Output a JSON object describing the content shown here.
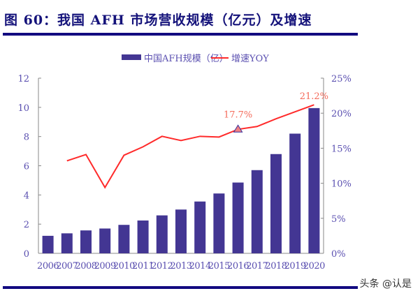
{
  "title": "图 60：我国 AFH 市场营收规模（亿元）及增速",
  "watermark": "头条 @认是",
  "chart_data": {
    "type": "bar+line",
    "categories": [
      "2006",
      "2007",
      "2008",
      "2009",
      "2010",
      "2011",
      "2012",
      "2013",
      "2014",
      "2015",
      "2016",
      "2017",
      "2018",
      "2019",
      "2020"
    ],
    "series": [
      {
        "name": "中国AFH规模（亿）",
        "type": "bar",
        "axis": "left",
        "color": "#433693",
        "values": [
          1.2,
          1.37,
          1.57,
          1.7,
          1.95,
          2.25,
          2.6,
          3.0,
          3.55,
          4.1,
          4.85,
          5.7,
          6.8,
          8.2,
          9.95
        ]
      },
      {
        "name": "增速YOY",
        "type": "line",
        "axis": "right",
        "color": "#ff2a2a",
        "values": [
          null,
          13.2,
          14.1,
          9.4,
          14.0,
          15.2,
          16.7,
          16.1,
          16.7,
          16.6,
          17.7,
          18.1,
          19.2,
          20.2,
          21.2
        ]
      }
    ],
    "annotations": [
      {
        "category": "2016",
        "label": "17.7%",
        "marker": "triangle"
      },
      {
        "category": "2020",
        "label": "21.2%"
      }
    ],
    "left_axis": {
      "ylim": [
        0,
        12
      ],
      "ticks": [
        "0",
        "2",
        "4",
        "6",
        "8",
        "10",
        "12"
      ]
    },
    "right_axis": {
      "ylim": [
        0,
        25
      ],
      "ticks": [
        "0%",
        "5%",
        "10%",
        "15%",
        "20%",
        "25%"
      ]
    },
    "legend_position": "top-center",
    "grid": false
  }
}
